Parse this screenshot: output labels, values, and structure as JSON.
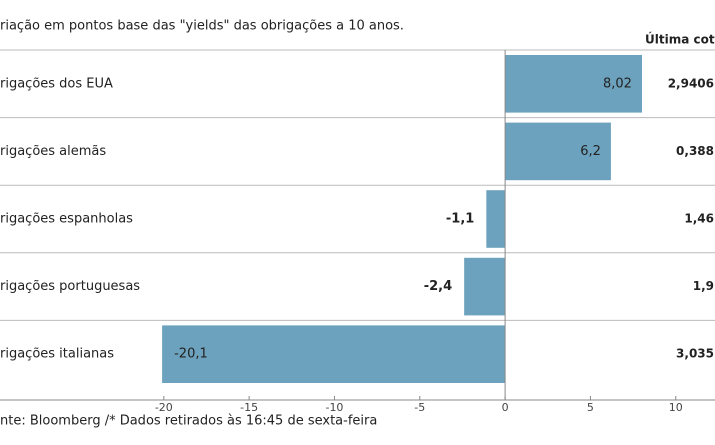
{
  "chart_data": {
    "type": "barh",
    "title": "riação em pontos base das \"yields\" das obrigações a 10 anos.",
    "source": "nte: Bloomberg /* Dados retirados às 16:45 de sexta-feira",
    "categories": [
      "rigações dos EUA",
      "rigações alemãs",
      "rigações espanholas",
      "rigações portuguesas",
      "rigações italianas"
    ],
    "values": [
      8.02,
      6.2,
      -1.1,
      -2.4,
      -20.1
    ],
    "value_labels": [
      "8,02",
      "6,2",
      "-1,1",
      "-2,4",
      "-20,1"
    ],
    "color": "#6ca2bd",
    "last_quote": {
      "title": "Última cota",
      "labels": [
        "2,9406",
        "0,388",
        "1,46",
        "1,9",
        "3,035"
      ]
    },
    "xlim": [
      -29.6,
      12.3
    ],
    "xticks": [
      -20,
      -15,
      -10,
      -5,
      0,
      5,
      10
    ]
  }
}
